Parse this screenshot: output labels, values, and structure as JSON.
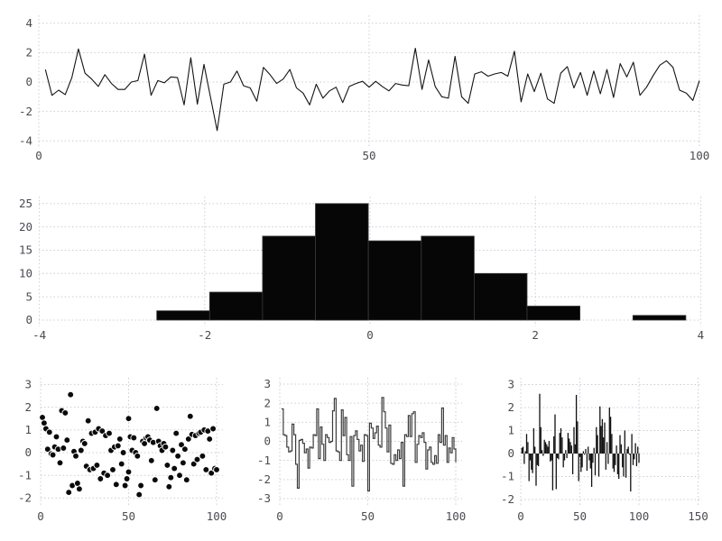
{
  "figure": {
    "background": "#ffffff",
    "grid_color": "#cbcbda",
    "tick_color": "#4a4a52",
    "line_color": "#141414",
    "hist_fill": "#060606",
    "hist_edge": "#3a3a3a",
    "scatter_fill": "#0a0a0a",
    "scatter_edge": "#ffffff",
    "step_color": "#3d3d3d",
    "stem_color": "#111111"
  },
  "chart_data": [
    {
      "id": "line",
      "type": "line",
      "title": "",
      "xlabel": "",
      "ylabel": "",
      "xlim": [
        0,
        100
      ],
      "ylim": [
        -4,
        4
      ],
      "x_ticks": [
        0,
        50,
        100
      ],
      "y_ticks": [
        -4,
        -2,
        0,
        2,
        4
      ],
      "grid": true,
      "legend": false,
      "x_start": 1,
      "values": [
        0.85,
        -0.9,
        -0.55,
        -0.85,
        0.3,
        2.25,
        0.6,
        0.2,
        -0.3,
        0.5,
        -0.1,
        -0.5,
        -0.5,
        0.0,
        0.1,
        1.9,
        -0.9,
        0.1,
        -0.05,
        0.35,
        0.3,
        -1.55,
        1.65,
        -1.5,
        1.2,
        -1.05,
        -3.3,
        -0.15,
        0.0,
        0.75,
        -0.25,
        -0.4,
        -1.3,
        1.0,
        0.5,
        -0.1,
        0.2,
        0.85,
        -0.4,
        -0.75,
        -1.55,
        -0.15,
        -1.1,
        -0.6,
        -0.35,
        -1.4,
        -0.3,
        -0.1,
        0.05,
        -0.35,
        0.05,
        -0.3,
        -0.6,
        -0.1,
        -0.2,
        -0.25,
        2.3,
        -0.5,
        1.5,
        -0.3,
        -1.0,
        -1.1,
        1.75,
        -1.0,
        -1.45,
        0.55,
        0.7,
        0.4,
        0.55,
        0.65,
        0.4,
        2.1,
        -1.35,
        0.55,
        -0.65,
        0.6,
        -1.15,
        -1.45,
        0.6,
        1.05,
        -0.4,
        0.65,
        -0.9,
        0.75,
        -0.8,
        0.85,
        -1.05,
        1.25,
        0.35,
        1.35,
        -0.9,
        -0.35,
        0.45,
        1.15,
        1.45,
        1.0,
        -0.55,
        -0.75,
        -1.25,
        0.1
      ]
    },
    {
      "id": "hist",
      "type": "histogram",
      "title": "",
      "xlim": [
        -4,
        4
      ],
      "ylim": [
        0,
        25
      ],
      "x_ticks": [
        -4,
        -2,
        0,
        2,
        4
      ],
      "y_ticks": [
        0,
        5,
        10,
        15,
        20,
        25
      ],
      "grid": true,
      "bin_start": -2.58,
      "bin_width": 0.64,
      "counts": [
        2,
        6,
        18,
        25,
        17,
        18,
        10,
        3,
        0,
        1
      ]
    },
    {
      "id": "scatter",
      "type": "scatter",
      "title": "",
      "xlim": [
        0,
        100
      ],
      "ylim": [
        -2,
        3
      ],
      "x_ticks": [
        0,
        50,
        100
      ],
      "y_ticks": [
        -2,
        -1,
        0,
        1,
        2,
        3
      ],
      "grid": true,
      "points": [
        [
          1,
          1.55
        ],
        [
          2,
          1.3
        ],
        [
          3,
          1.05
        ],
        [
          4,
          0.15
        ],
        [
          5,
          0.9
        ],
        [
          6,
          -0.05
        ],
        [
          7,
          -0.1
        ],
        [
          8,
          0.25
        ],
        [
          9,
          0.7
        ],
        [
          10,
          0.15
        ],
        [
          11,
          -0.45
        ],
        [
          12,
          1.85
        ],
        [
          13,
          0.2
        ],
        [
          14,
          1.75
        ],
        [
          15,
          0.55
        ],
        [
          16,
          -1.75
        ],
        [
          17,
          2.55
        ],
        [
          18,
          -1.45
        ],
        [
          19,
          0.05
        ],
        [
          20,
          -0.15
        ],
        [
          21,
          -1.35
        ],
        [
          22,
          -1.6
        ],
        [
          23,
          0.1
        ],
        [
          24,
          0.5
        ],
        [
          25,
          0.4
        ],
        [
          26,
          -0.6
        ],
        [
          27,
          1.4
        ],
        [
          28,
          -0.75
        ],
        [
          29,
          0.85
        ],
        [
          30,
          -0.7
        ],
        [
          31,
          0.9
        ],
        [
          32,
          -0.55
        ],
        [
          33,
          1.05
        ],
        [
          34,
          -1.15
        ],
        [
          35,
          0.95
        ],
        [
          36,
          -0.9
        ],
        [
          37,
          0.75
        ],
        [
          38,
          -1.0
        ],
        [
          39,
          0.85
        ],
        [
          40,
          0.1
        ],
        [
          41,
          -0.75
        ],
        [
          42,
          0.25
        ],
        [
          43,
          -1.4
        ],
        [
          44,
          0.3
        ],
        [
          45,
          0.6
        ],
        [
          46,
          -0.5
        ],
        [
          47,
          0.0
        ],
        [
          48,
          -1.45
        ],
        [
          49,
          -1.15
        ],
        [
          50,
          1.5
        ],
        [
          50,
          -0.85
        ],
        [
          51,
          0.7
        ],
        [
          52,
          0.1
        ],
        [
          53,
          0.65
        ],
        [
          54,
          0.0
        ],
        [
          55,
          -0.15
        ],
        [
          56,
          -1.85
        ],
        [
          57,
          -1.45
        ],
        [
          58,
          0.5
        ],
        [
          59,
          0.4
        ],
        [
          60,
          0.65
        ],
        [
          61,
          0.7
        ],
        [
          62,
          0.55
        ],
        [
          63,
          -0.35
        ],
        [
          64,
          0.45
        ],
        [
          65,
          -1.2
        ],
        [
          66,
          1.95
        ],
        [
          67,
          0.5
        ],
        [
          68,
          0.3
        ],
        [
          69,
          0.1
        ],
        [
          70,
          0.4
        ],
        [
          71,
          0.25
        ],
        [
          72,
          -0.55
        ],
        [
          73,
          -1.5
        ],
        [
          74,
          -1.1
        ],
        [
          75,
          0.1
        ],
        [
          76,
          -0.7
        ],
        [
          77,
          0.85
        ],
        [
          78,
          -0.15
        ],
        [
          79,
          -1.0
        ],
        [
          80,
          0.35
        ],
        [
          81,
          -0.45
        ],
        [
          82,
          0.15
        ],
        [
          83,
          -1.2
        ],
        [
          84,
          0.6
        ],
        [
          85,
          1.6
        ],
        [
          86,
          0.8
        ],
        [
          87,
          -0.5
        ],
        [
          88,
          0.75
        ],
        [
          89,
          -0.3
        ],
        [
          90,
          0.85
        ],
        [
          91,
          0.9
        ],
        [
          92,
          -0.15
        ],
        [
          93,
          1.0
        ],
        [
          94,
          -0.75
        ],
        [
          95,
          0.95
        ],
        [
          96,
          0.6
        ],
        [
          97,
          -0.9
        ],
        [
          98,
          1.05
        ],
        [
          99,
          -0.7
        ],
        [
          100,
          -0.75
        ]
      ]
    },
    {
      "id": "step",
      "type": "step",
      "title": "",
      "xlim": [
        0,
        100
      ],
      "ylim": [
        -3,
        3
      ],
      "x_ticks": [
        0,
        50,
        100
      ],
      "y_ticks": [
        -3,
        -2,
        -1,
        0,
        1,
        2,
        3
      ],
      "grid": true,
      "x_start": 1,
      "values": [
        1.7,
        0.35,
        0.3,
        -0.3,
        -0.55,
        -0.5,
        0.9,
        0.35,
        -1.2,
        -2.45,
        0.05,
        0.1,
        -0.1,
        -0.6,
        -0.4,
        -1.4,
        -0.3,
        -0.35,
        0.35,
        0.3,
        1.7,
        -0.9,
        0.75,
        -0.15,
        -1.0,
        0.35,
        0.2,
        -0.05,
        0.0,
        1.6,
        2.25,
        -0.5,
        -0.55,
        -1.0,
        1.65,
        0.3,
        1.25,
        -0.7,
        -1.0,
        0.25,
        -2.35,
        0.3,
        0.55,
        0.1,
        -0.5,
        -0.2,
        -1.05,
        0.35,
        0.3,
        -2.6,
        0.95,
        0.7,
        0.15,
        0.45,
        0.8,
        -0.2,
        -0.3,
        2.3,
        1.55,
        0.7,
        -0.55,
        0.85,
        -1.15,
        -1.2,
        -0.7,
        -1.0,
        -0.45,
        -0.9,
        -0.05,
        -2.35,
        0.35,
        0.25,
        1.35,
        0.25,
        1.45,
        1.55,
        -1.1,
        -0.15,
        0.3,
        0.2,
        0.45,
        -0.05,
        -1.45,
        -0.45,
        -0.3,
        -1.1,
        -1.2,
        -0.75,
        -1.15,
        0.35,
        -0.05,
        1.75,
        -0.2,
        0.3,
        -1.1,
        -0.35,
        -0.6,
        0.2,
        -0.4,
        -1.1
      ]
    },
    {
      "id": "stem",
      "type": "bar",
      "title": "",
      "xlim": [
        0,
        150
      ],
      "ylim": [
        -2,
        3
      ],
      "x_ticks": [
        0,
        50,
        100,
        150
      ],
      "y_ticks": [
        -2,
        -1,
        0,
        1,
        2,
        3
      ],
      "grid": true,
      "x_start": 1,
      "values": [
        0.25,
        0.3,
        -0.45,
        0.1,
        0.85,
        0.5,
        -1.2,
        -0.3,
        -0.7,
        -0.85,
        1.1,
        0.3,
        -1.4,
        -0.5,
        -0.55,
        2.6,
        1.15,
        0.15,
        -0.1,
        0.6,
        0.5,
        0.4,
        0.3,
        0.55,
        -0.35,
        -0.3,
        -1.6,
        0.75,
        1.7,
        -1.55,
        -0.2,
        -0.25,
        0.9,
        1.1,
        0.7,
        -0.6,
        -0.3,
        0.15,
        -0.2,
        0.9,
        0.65,
        0.5,
        0.35,
        -0.9,
        1.15,
        0.4,
        2.55,
        1.4,
        -1.2,
        -0.15,
        -0.8,
        -0.6,
        0.1,
        -0.05,
        0.2,
        -0.75,
        0.3,
        -0.3,
        -0.65,
        -1.45,
        -0.4,
        0.25,
        -0.95,
        1.15,
        0.8,
        -1.0,
        2.05,
        1.2,
        1.5,
        0.7,
        1.35,
        -0.7,
        0.5,
        -0.45,
        2.0,
        1.6,
        0.85,
        -0.65,
        -0.8,
        -0.5,
        0.35,
        -0.9,
        -1.1,
        0.8,
        0.4,
        -0.6,
        -1.0,
        1.0,
        -1.05,
        0.2,
        0.3,
        -0.05,
        -1.65,
        0.85,
        -0.5,
        -0.25,
        0.45,
        -0.55,
        0.3,
        -0.4
      ]
    }
  ]
}
